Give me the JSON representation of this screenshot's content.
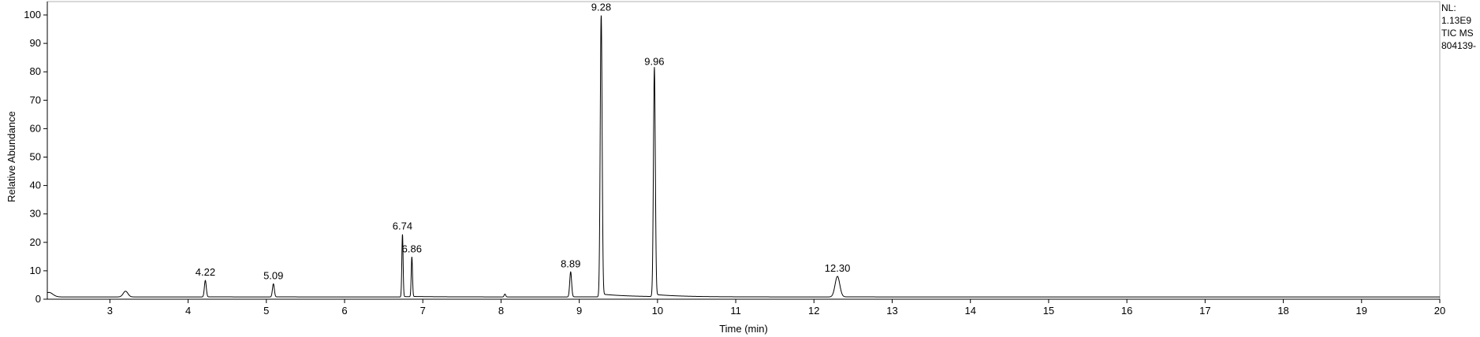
{
  "info_panel": {
    "nl_label": "NL:",
    "nl_value": "1.13E9",
    "scan_filter": "TIC  MS",
    "file_name": "804139-"
  },
  "chart_data": {
    "type": "line",
    "xlabel": "Time (min)",
    "ylabel": "Relative Abundance",
    "xlim": [
      2.2,
      20
    ],
    "ylim": [
      0,
      100
    ],
    "x_ticks": [
      3,
      4,
      5,
      6,
      7,
      8,
      9,
      10,
      11,
      12,
      13,
      14,
      15,
      16,
      17,
      18,
      19,
      20
    ],
    "y_ticks": [
      0,
      10,
      20,
      30,
      40,
      50,
      60,
      70,
      80,
      90,
      100
    ],
    "grid": false,
    "line_color": "#000000",
    "baseline": 0.8,
    "peaks": [
      {
        "rt": 2.22,
        "height": 1.6,
        "width": 0.05,
        "tail": 0.0
      },
      {
        "rt": 3.2,
        "height": 2.0,
        "width": 0.03,
        "tail": 0.2
      },
      {
        "rt": 4.22,
        "height": 5.8,
        "width": 0.012,
        "tail": 0.3,
        "label": "4.22"
      },
      {
        "rt": 5.09,
        "height": 4.6,
        "width": 0.012,
        "tail": 0.3,
        "label": "5.09"
      },
      {
        "rt": 6.74,
        "height": 22,
        "width": 0.008,
        "tail": 0.3,
        "label": "6.74"
      },
      {
        "rt": 6.86,
        "height": 14,
        "width": 0.008,
        "tail": 0.3,
        "label": "6.86"
      },
      {
        "rt": 8.05,
        "height": 1.0,
        "width": 0.01,
        "tail": 0.0
      },
      {
        "rt": 8.89,
        "height": 8.8,
        "width": 0.012,
        "tail": 0.3,
        "label": "8.89"
      },
      {
        "rt": 9.28,
        "height": 99,
        "width": 0.012,
        "tail": 0.5,
        "label": "9.28"
      },
      {
        "rt": 9.96,
        "height": 80,
        "width": 0.012,
        "tail": 0.45,
        "label": "9.96"
      },
      {
        "rt": 12.3,
        "height": 7.2,
        "width": 0.03,
        "tail": 0.35,
        "label": "12.30"
      }
    ]
  }
}
